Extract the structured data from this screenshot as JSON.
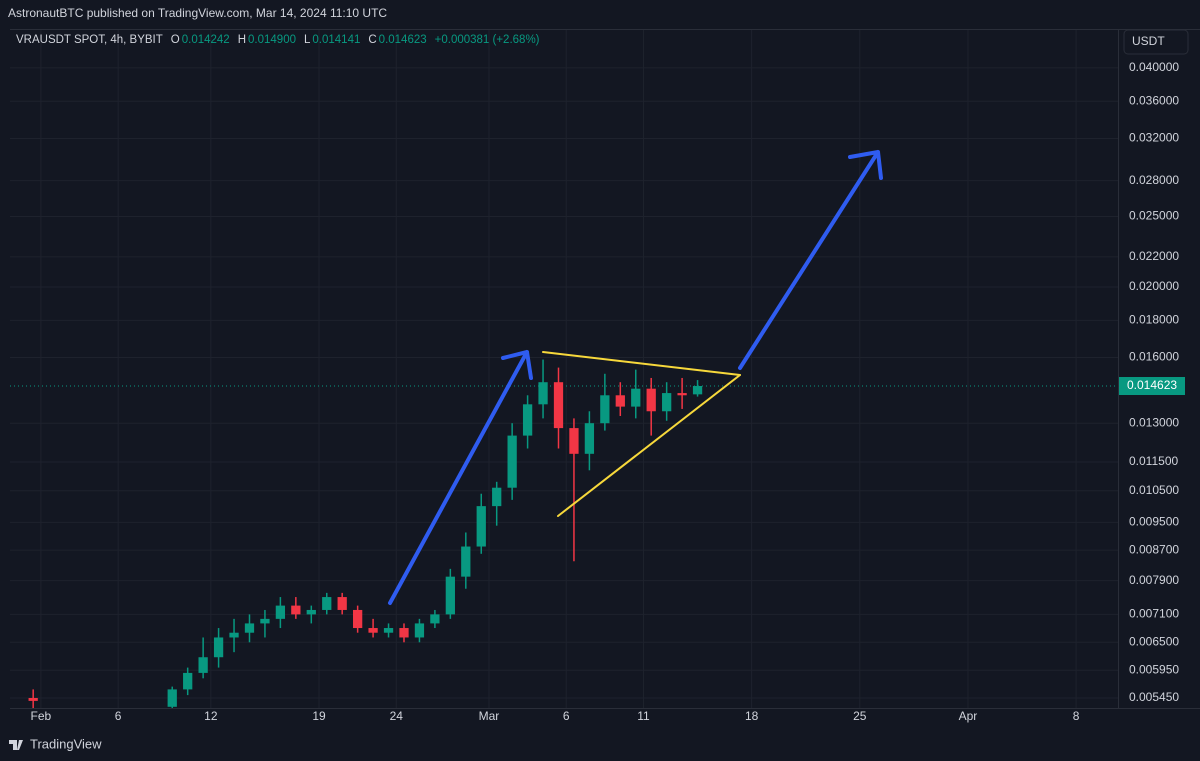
{
  "header": "AstronautBTC published on TradingView.com, Mar 14, 2024 11:10 UTC",
  "footer": "TradingView",
  "currency": "USDT",
  "chart_data": {
    "type": "candlestick",
    "legend": {
      "symbol": "VRAUSDT SPOT, 4h, BYBIT",
      "items": [
        {
          "key": "O",
          "value": "0.014242"
        },
        {
          "key": "H",
          "value": "0.014900"
        },
        {
          "key": "L",
          "value": "0.014141"
        },
        {
          "key": "C",
          "value": "0.014623"
        }
      ],
      "change": "+0.000381 (+2.68%)"
    },
    "up_color": "#089981",
    "down_color": "#f23645",
    "x": [
      "2024-01-31",
      "2024-02-09",
      "2024-02-10",
      "2024-02-11",
      "2024-02-12",
      "2024-02-13",
      "2024-02-14",
      "2024-02-15",
      "2024-02-16",
      "2024-02-17",
      "2024-02-18",
      "2024-02-19",
      "2024-02-20",
      "2024-02-21",
      "2024-02-22",
      "2024-02-23",
      "2024-02-24",
      "2024-02-25",
      "2024-02-26",
      "2024-02-27",
      "2024-02-28",
      "2024-02-29",
      "2024-03-01",
      "2024-03-02",
      "2024-03-03",
      "2024-03-04",
      "2024-03-05",
      "2024-03-06",
      "2024-03-07",
      "2024-03-08",
      "2024-03-09",
      "2024-03-10",
      "2024-03-11",
      "2024-03-12",
      "2024-03-13",
      "2024-03-14"
    ],
    "open": [
      0.00545,
      0.0053,
      0.0056,
      0.0059,
      0.0062,
      0.0066,
      0.0067,
      0.0069,
      0.007,
      0.0073,
      0.0071,
      0.0072,
      0.0075,
      0.0072,
      0.0068,
      0.0067,
      0.0068,
      0.0066,
      0.0069,
      0.0071,
      0.008,
      0.0088,
      0.01,
      0.0106,
      0.0125,
      0.0138,
      0.0148,
      0.0128,
      0.0118,
      0.013,
      0.0142,
      0.0137,
      0.0145,
      0.0135,
      0.0143,
      0.014242
    ],
    "high": [
      0.0056,
      0.00565,
      0.006,
      0.0066,
      0.0068,
      0.007,
      0.0071,
      0.0072,
      0.0075,
      0.0075,
      0.0073,
      0.0076,
      0.0076,
      0.0073,
      0.007,
      0.0069,
      0.0069,
      0.007,
      0.0072,
      0.0082,
      0.0092,
      0.0104,
      0.0108,
      0.013,
      0.0142,
      0.0159,
      0.0155,
      0.0132,
      0.0135,
      0.0152,
      0.0148,
      0.0154,
      0.015,
      0.0148,
      0.015,
      0.0149
    ],
    "low": [
      0.00525,
      0.0052,
      0.0055,
      0.0058,
      0.006,
      0.0063,
      0.0065,
      0.0066,
      0.0068,
      0.007,
      0.0069,
      0.0071,
      0.0071,
      0.0067,
      0.0066,
      0.0066,
      0.0065,
      0.0065,
      0.0068,
      0.007,
      0.0077,
      0.0086,
      0.0094,
      0.0102,
      0.012,
      0.0132,
      0.012,
      0.0084,
      0.0112,
      0.0127,
      0.0133,
      0.0132,
      0.0125,
      0.0131,
      0.0136,
      0.014141
    ],
    "close": [
      0.0054,
      0.0056,
      0.0059,
      0.0062,
      0.0066,
      0.0067,
      0.0069,
      0.007,
      0.0073,
      0.0071,
      0.0072,
      0.0075,
      0.0072,
      0.0068,
      0.0067,
      0.0068,
      0.0066,
      0.0069,
      0.0071,
      0.008,
      0.0088,
      0.01,
      0.0106,
      0.0125,
      0.0138,
      0.0148,
      0.0128,
      0.0118,
      0.013,
      0.0142,
      0.0137,
      0.0145,
      0.0135,
      0.0143,
      0.0142,
      0.014623
    ],
    "last_price": {
      "value": 0.014623,
      "label": "0.014623"
    },
    "log_scale": true,
    "grid": true,
    "xlim": [
      "2024-01-30",
      "2024-04-10"
    ],
    "xticks": [
      {
        "value": "2024-02-01",
        "label": "Feb"
      },
      {
        "value": "2024-02-06",
        "label": "6"
      },
      {
        "value": "2024-02-12",
        "label": "12"
      },
      {
        "value": "2024-02-19",
        "label": "19"
      },
      {
        "value": "2024-02-24",
        "label": "24"
      },
      {
        "value": "2024-03-01",
        "label": "Mar"
      },
      {
        "value": "2024-03-06",
        "label": "6"
      },
      {
        "value": "2024-03-11",
        "label": "11"
      },
      {
        "value": "2024-03-18",
        "label": "18"
      },
      {
        "value": "2024-03-25",
        "label": "25"
      },
      {
        "value": "2024-04-01",
        "label": "Apr"
      },
      {
        "value": "2024-04-08",
        "label": "8"
      }
    ],
    "ylim": [
      0.00528,
      0.0451
    ],
    "yticks": [
      {
        "value": 0.04,
        "label": "0.040000"
      },
      {
        "value": 0.036,
        "label": "0.036000"
      },
      {
        "value": 0.032,
        "label": "0.032000"
      },
      {
        "value": 0.028,
        "label": "0.028000"
      },
      {
        "value": 0.025,
        "label": "0.025000"
      },
      {
        "value": 0.022,
        "label": "0.022000"
      },
      {
        "value": 0.02,
        "label": "0.020000"
      },
      {
        "value": 0.018,
        "label": "0.018000"
      },
      {
        "value": 0.016,
        "label": "0.016000"
      },
      {
        "value": 0.013,
        "label": "0.013000"
      },
      {
        "value": 0.0115,
        "label": "0.011500"
      },
      {
        "value": 0.0105,
        "label": "0.010500"
      },
      {
        "value": 0.0095,
        "label": "0.009500"
      },
      {
        "value": 0.0087,
        "label": "0.008700"
      },
      {
        "value": 0.0079,
        "label": "0.007900"
      },
      {
        "value": 0.0071,
        "label": "0.007100"
      },
      {
        "value": 0.0065,
        "label": "0.006500"
      },
      {
        "value": 0.00595,
        "label": "0.005950"
      },
      {
        "value": 0.00545,
        "label": "0.005450"
      }
    ]
  }
}
